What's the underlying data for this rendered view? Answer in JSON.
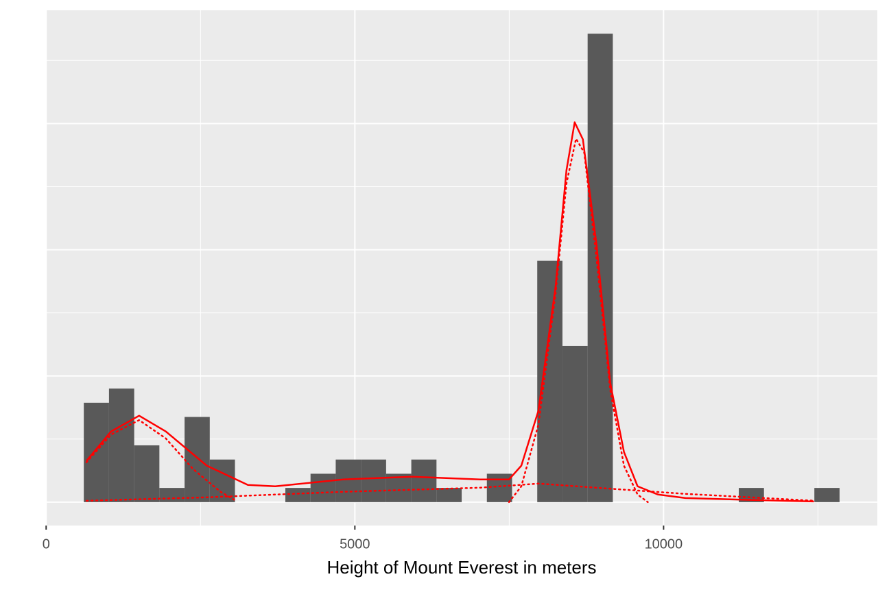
{
  "chart_data": {
    "type": "histogram",
    "x_label": "Height of Mount Everest in meters",
    "bins": [
      610,
      1018,
      1426,
      1834,
      2242,
      2650,
      3058,
      3466,
      3874,
      4282,
      4690,
      5098,
      5506,
      5914,
      6322,
      6730,
      7138,
      7546,
      7954,
      8362,
      8770,
      9178,
      9586,
      9994,
      10402,
      10810,
      11218,
      11626,
      12034,
      12442,
      12850
    ],
    "values": [
      0.0001575,
      0.00018,
      9e-05,
      2.25e-05,
      0.000135,
      6.75e-05,
      0,
      0,
      2.25e-05,
      4.5e-05,
      6.75e-05,
      6.75e-05,
      4.5e-05,
      6.75e-05,
      2.25e-05,
      0,
      4.5e-05,
      0,
      0.0003825,
      0.0002475,
      0.0007425,
      0,
      0,
      0,
      0,
      0,
      2.25e-05,
      0,
      0,
      2.25e-05
    ],
    "color": "#595959",
    "lines": [
      {
        "color": "#ff0000",
        "style": "solid",
        "x": [
          653,
          1052,
          1506,
          1938,
          2602,
          3267,
          3710,
          4817,
          5925,
          7032,
          7497,
          7696,
          7973,
          8250,
          8427,
          8560,
          8693,
          8915,
          9136,
          9358,
          9579,
          9911,
          10354,
          11462,
          12436
        ],
        "values": [
          6.54e-05,
          0.000112,
          0.000137,
          0.000112,
          5.78e-05,
          2.73e-05,
          2.51e-05,
          3.6e-05,
          4.03e-05,
          3.6e-05,
          3.6e-05,
          5.78e-05,
          0.000145,
          0.000341,
          0.000526,
          0.000602,
          0.000575,
          0.000407,
          0.000189,
          7.96e-05,
          2.51e-05,
          1.2e-05,
          6.5e-06,
          3.3e-06,
          1.1e-06
        ]
      },
      {
        "color": "#ff0000",
        "style": "dotted",
        "x": [
          653,
          1052,
          1506,
          1938,
          2381,
          2824,
          3056
        ],
        "values": [
          6.32e-05,
          0.000107,
          0.00013,
          0.000101,
          5.23e-05,
          1.64e-05,
          3.3e-06
        ]
      },
      {
        "color": "#ff0000",
        "style": "dotted",
        "x": [
          653,
          2602,
          4817,
          7032,
          7973,
          9225,
          10354,
          12436
        ],
        "values": [
          2.2e-06,
          7.6e-06,
          1.64e-05,
          2.29e-05,
          2.94e-05,
          2.07e-05,
          1.31e-05,
          2.2e-06
        ]
      },
      {
        "color": "#ff0000",
        "style": "dotted",
        "x": [
          7497,
          7696,
          7973,
          8250,
          8427,
          8582,
          8715,
          8915,
          9136,
          9358,
          9579,
          9745
        ],
        "values": [
          0,
          2.51e-05,
          0.000123,
          0.00033,
          0.000505,
          0.000576,
          0.000554,
          0.000385,
          0.000178,
          5.78e-05,
          1.2e-05,
          0
        ]
      }
    ],
    "xlim": [
      -3,
      13462
    ],
    "ylim": [
      -3.71e-05,
      0.0007796
    ],
    "xticks": [
      0,
      5000,
      10000
    ],
    "xminor": [
      2500,
      7500,
      12500
    ],
    "ygrid": [
      0,
      0.0002,
      0.0004,
      0.0006
    ],
    "yminor": [
      0.0001,
      0.0003,
      0.0005,
      0.0007
    ],
    "grid": true
  }
}
